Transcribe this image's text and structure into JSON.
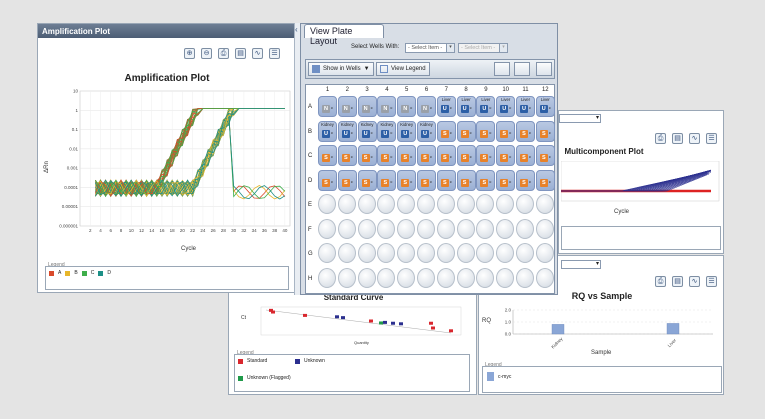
{
  "amplification": {
    "panel_title": "Amplification Plot",
    "chart_title": "Amplification Plot",
    "ylabel": "ΔRn",
    "xlabel": "Cycle",
    "y_ticks": [
      "10",
      "1",
      "0.1",
      "0.01",
      "0.001",
      "0.0001",
      "0.00001",
      "0.000001"
    ],
    "x_ticks": [
      "2",
      "4",
      "6",
      "8",
      "10",
      "12",
      "14",
      "16",
      "18",
      "20",
      "22",
      "24",
      "26",
      "28",
      "30",
      "32",
      "34",
      "36",
      "38",
      "40"
    ],
    "legend_title": "Legend",
    "legend": [
      {
        "label": "A",
        "color": "#d94a2b"
      },
      {
        "label": "B",
        "color": "#e7b62a"
      },
      {
        "label": "C",
        "color": "#3fae4a"
      },
      {
        "label": "D",
        "color": "#1c8f86"
      }
    ],
    "toolbar_icons": [
      "zoom-in-icon",
      "zoom-out-icon",
      "print-icon",
      "save-icon",
      "chart-settings-icon",
      "list-icon"
    ]
  },
  "plate": {
    "tab_label": "View Plate Layout",
    "select_label": "Select Wells With:",
    "select_value": "- Select Item -",
    "select_value2": "- Select Item -",
    "show_in_wells": "Show in Wells",
    "view_legend": "View Legend",
    "columns": [
      "1",
      "2",
      "3",
      "4",
      "5",
      "6",
      "7",
      "8",
      "9",
      "10",
      "11",
      "12"
    ],
    "rows": [
      "A",
      "B",
      "C",
      "D",
      "E",
      "F",
      "G",
      "H"
    ],
    "filled": {
      "A": [
        {
          "name": "",
          "task": "N",
          "sub": "c"
        },
        {
          "name": "",
          "task": "N",
          "sub": "c"
        },
        {
          "name": "",
          "task": "N",
          "sub": "c"
        },
        {
          "name": "",
          "task": "N",
          "sub": "c"
        },
        {
          "name": "",
          "task": "N",
          "sub": "c"
        },
        {
          "name": "",
          "task": "N",
          "sub": "c"
        },
        {
          "name": "Liver",
          "task": "U",
          "sub": "c"
        },
        {
          "name": "Liver",
          "task": "U",
          "sub": "c"
        },
        {
          "name": "Liver",
          "task": "U",
          "sub": "c"
        },
        {
          "name": "Liver",
          "task": "U",
          "sub": "c"
        },
        {
          "name": "Liver",
          "task": "U",
          "sub": "c"
        },
        {
          "name": "Liver",
          "task": "U",
          "sub": "c"
        }
      ],
      "B": [
        {
          "name": "Kidney",
          "task": "U",
          "sub": "c"
        },
        {
          "name": "Kidney",
          "task": "U",
          "sub": "c"
        },
        {
          "name": "Kidney",
          "task": "U",
          "sub": "c"
        },
        {
          "name": "Kidney",
          "task": "U",
          "sub": "c"
        },
        {
          "name": "Kidney",
          "task": "U",
          "sub": "c"
        },
        {
          "name": "Kidney",
          "task": "U",
          "sub": "c"
        },
        {
          "name": "",
          "task": "S",
          "sub": "c"
        },
        {
          "name": "",
          "task": "S",
          "sub": "c"
        },
        {
          "name": "",
          "task": "S",
          "sub": "c"
        },
        {
          "name": "",
          "task": "S",
          "sub": "c"
        },
        {
          "name": "",
          "task": "S",
          "sub": "c"
        },
        {
          "name": "",
          "task": "S",
          "sub": "c"
        }
      ],
      "C": [
        {
          "name": "",
          "task": "S",
          "sub": "c"
        },
        {
          "name": "",
          "task": "S",
          "sub": "c"
        },
        {
          "name": "",
          "task": "S",
          "sub": "c"
        },
        {
          "name": "",
          "task": "S",
          "sub": "c"
        },
        {
          "name": "",
          "task": "S",
          "sub": "c"
        },
        {
          "name": "",
          "task": "S",
          "sub": "c"
        },
        {
          "name": "",
          "task": "S",
          "sub": "c"
        },
        {
          "name": "",
          "task": "S",
          "sub": "c"
        },
        {
          "name": "",
          "task": "S",
          "sub": "c"
        },
        {
          "name": "",
          "task": "S",
          "sub": "c"
        },
        {
          "name": "",
          "task": "S",
          "sub": "c"
        },
        {
          "name": "",
          "task": "S",
          "sub": "c"
        }
      ],
      "D": [
        {
          "name": "",
          "task": "S",
          "sub": "c"
        },
        {
          "name": "",
          "task": "S",
          "sub": "c"
        },
        {
          "name": "",
          "task": "S",
          "sub": "c"
        },
        {
          "name": "",
          "task": "S",
          "sub": "c"
        },
        {
          "name": "",
          "task": "S",
          "sub": "c"
        },
        {
          "name": "",
          "task": "S",
          "sub": "c"
        },
        {
          "name": "",
          "task": "S",
          "sub": "c"
        },
        {
          "name": "",
          "task": "S",
          "sub": "c"
        },
        {
          "name": "",
          "task": "S",
          "sub": "c"
        },
        {
          "name": "",
          "task": "S",
          "sub": "c"
        },
        {
          "name": "",
          "task": "S",
          "sub": "c"
        },
        {
          "name": "",
          "task": "S",
          "sub": "c"
        }
      ]
    }
  },
  "multicomponent": {
    "chart_title": "Multicomponent Plot",
    "xlabel": "Cycle",
    "toolbar_icons": [
      "print-icon",
      "save-icon",
      "chart-settings-icon",
      "list-icon"
    ]
  },
  "rq": {
    "chart_title": "RQ vs Sample",
    "ylabel": "RQ",
    "xlabel": "Sample",
    "y_ticks": [
      "2.0",
      "1.0",
      "0.0"
    ],
    "legend_title": "Legend",
    "legend": [
      {
        "label": "c-myc",
        "color": "#8aa6d6"
      }
    ],
    "toolbar_icons": [
      "print-icon",
      "save-icon",
      "chart-settings-icon",
      "list-icon"
    ]
  },
  "standard": {
    "chart_title": "Standard Curve",
    "ylabel": "Ct",
    "xlabel": "Quantity",
    "legend_title": "Legend",
    "legend": [
      {
        "label": "Standard",
        "color": "#d9272e"
      },
      {
        "label": "Unknown",
        "color": "#2b2f8f"
      },
      {
        "label": "Unknown (Flagged)",
        "color": "#1f9a4a"
      }
    ]
  },
  "chart_data": [
    {
      "type": "line",
      "title": "Amplification Plot",
      "xlabel": "Cycle",
      "ylabel": "ΔRn",
      "scale_y": "log",
      "ylim": [
        1e-06,
        10
      ],
      "xlim": [
        0,
        40
      ],
      "grid": true,
      "legend_position": "bottom-left"
    },
    {
      "type": "bar",
      "title": "RQ vs Sample",
      "xlabel": "Sample",
      "ylabel": "RQ",
      "categories": [
        "Kidney",
        "Liver"
      ],
      "values": [
        1.0,
        1.1
      ],
      "ylim": [
        0,
        2.5
      ]
    },
    {
      "type": "scatter",
      "title": "Standard Curve",
      "xlabel": "Quantity",
      "ylabel": "Ct",
      "scale_x": "log",
      "series": [
        {
          "name": "Standard",
          "color": "#d9272e"
        },
        {
          "name": "Unknown",
          "color": "#2b2f8f"
        },
        {
          "name": "Unknown (Flagged)",
          "color": "#1f9a4a"
        }
      ]
    }
  ]
}
